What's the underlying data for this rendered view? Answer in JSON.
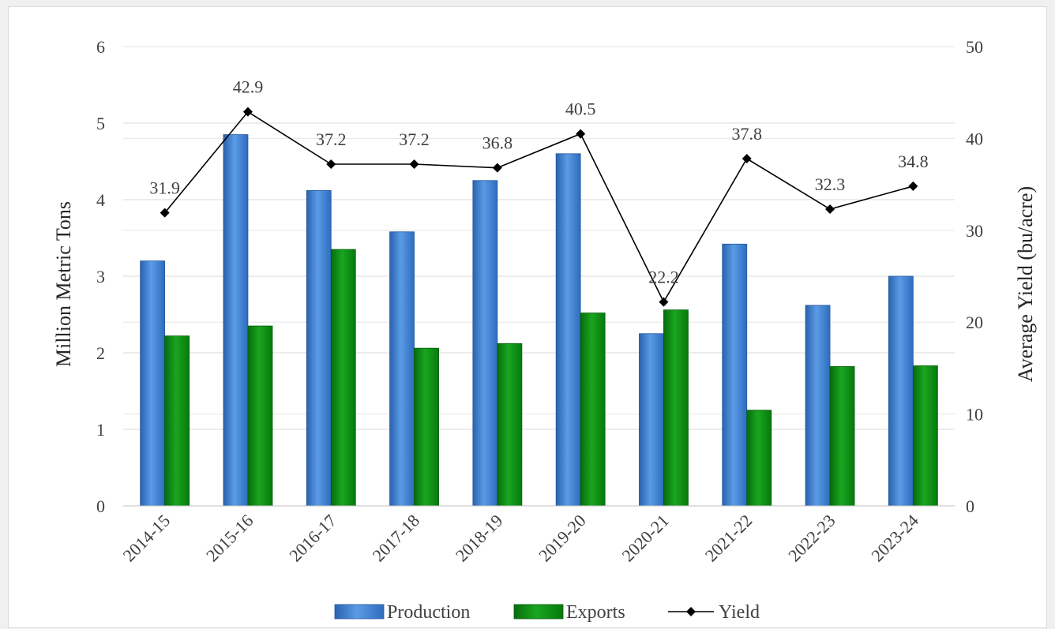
{
  "chart_data": {
    "type": "bar",
    "categories": [
      "2014-15",
      "2015-16",
      "2016-17",
      "2017-18",
      "2018-19",
      "2019-20",
      "2020-21",
      "2021-22",
      "2022-23",
      "2023-24"
    ],
    "series": [
      {
        "name": "Production",
        "type": "bar",
        "axis": "left",
        "color": "#3a7fd0",
        "values": [
          3.2,
          4.85,
          4.12,
          3.58,
          4.25,
          4.6,
          2.25,
          3.42,
          2.62,
          3.0
        ]
      },
      {
        "name": "Exports",
        "type": "bar",
        "axis": "left",
        "color": "#0a8a10",
        "values": [
          2.22,
          2.35,
          3.35,
          2.06,
          2.12,
          2.52,
          2.56,
          1.25,
          1.82,
          1.83
        ]
      },
      {
        "name": "Yield",
        "type": "line",
        "axis": "right",
        "color": "#000000",
        "values": [
          31.9,
          42.9,
          37.2,
          37.2,
          36.8,
          40.5,
          22.2,
          37.8,
          32.3,
          34.8
        ],
        "labels": [
          "31.9",
          "42.9",
          "37.2",
          "37.2",
          "36.8",
          "40.5",
          "22.2",
          "37.8",
          "32.3",
          "34.8"
        ]
      }
    ],
    "ylabel": "Million Metric Tons",
    "y2label": "Average Yield (bu/acre)",
    "ylim": [
      0,
      6
    ],
    "y2lim": [
      0,
      50
    ],
    "yticks": [
      "0",
      "1",
      "2",
      "3",
      "4",
      "5",
      "6"
    ],
    "y2ticks": [
      "0",
      "10",
      "20",
      "30",
      "40",
      "50"
    ],
    "grid": true,
    "legend": "bottom"
  }
}
